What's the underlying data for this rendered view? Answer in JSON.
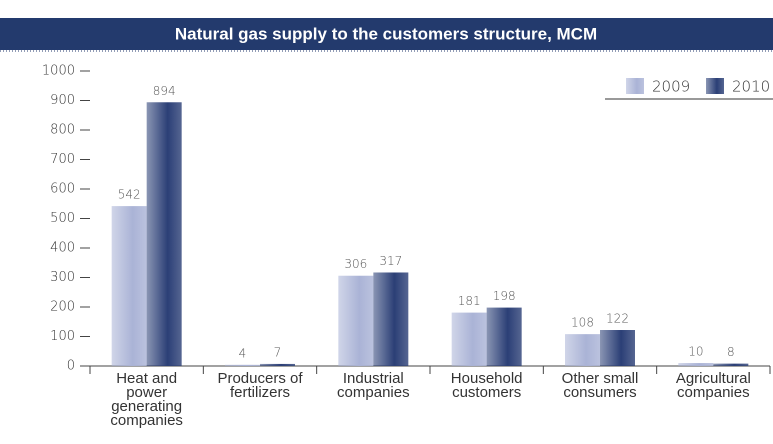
{
  "chart_data": {
    "type": "bar",
    "title": "Natural gas supply to the customers structure, MCM",
    "categories": [
      "Heat and power generating companies",
      "Producers of fertilizers",
      "Industrial companies",
      "Household customers",
      "Other small consumers",
      "Agricultural companies"
    ],
    "series": [
      {
        "name": "2009",
        "color": "#aab3d6",
        "values": [
          542,
          4,
          306,
          181,
          108,
          10
        ]
      },
      {
        "name": "2010",
        "color": "#2b3f76",
        "values": [
          894,
          7,
          317,
          198,
          122,
          8
        ]
      }
    ],
    "ylim": [
      0,
      1000
    ],
    "yticks": [
      0,
      100,
      200,
      300,
      400,
      500,
      600,
      700,
      800,
      900,
      1000
    ],
    "legend": "top-right"
  }
}
